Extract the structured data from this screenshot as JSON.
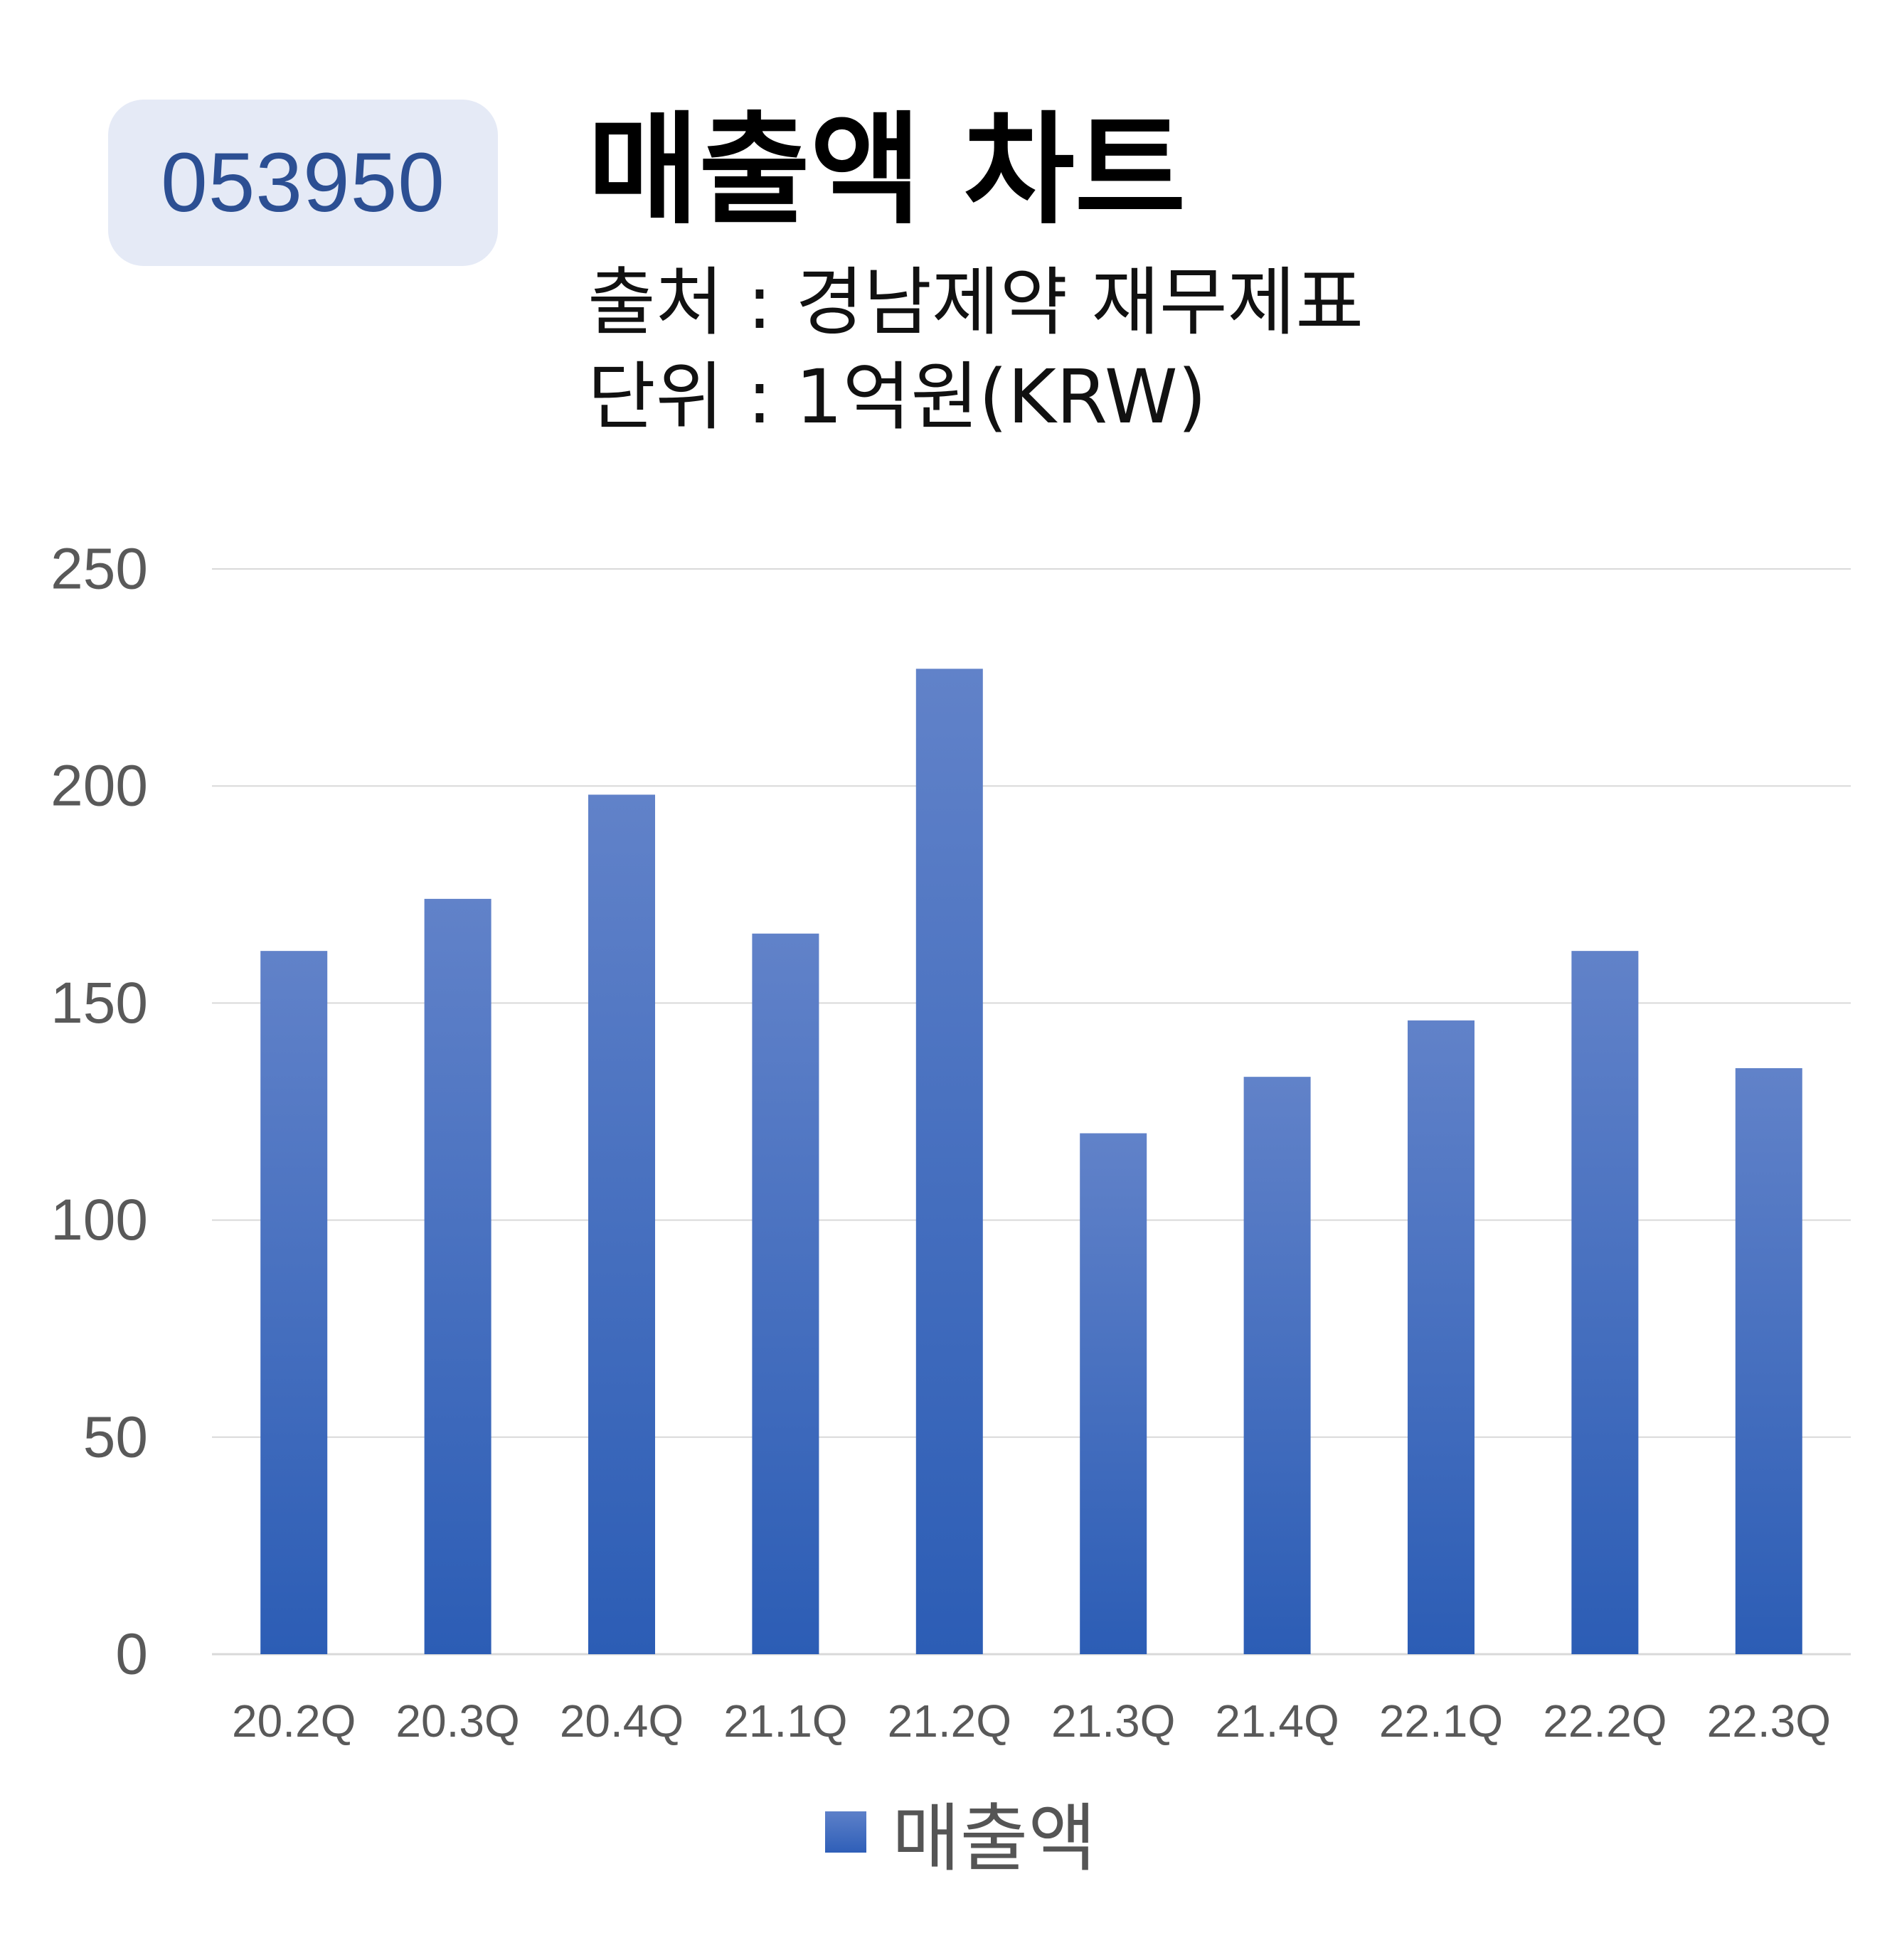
{
  "badge": {
    "code": "053950"
  },
  "header": {
    "title": "매출액 차트",
    "source": "출처 : 경남제약 재무제표",
    "unit": "단위 : 1억원(KRW)"
  },
  "colors": {
    "bar_top": "#6182c9",
    "bar_bottom": "#2c5db5",
    "gridline": "#d9d9d9",
    "axis_text": "#595959",
    "badge_bg": "#e5eaf6",
    "badge_text": "#2c4f93"
  },
  "chart_data": {
    "type": "bar",
    "categories": [
      "20.2Q",
      "20.3Q",
      "20.4Q",
      "21.1Q",
      "21.2Q",
      "21.3Q",
      "21.4Q",
      "22.1Q",
      "22.2Q",
      "22.3Q"
    ],
    "series": [
      {
        "name": "매출액",
        "values": [
          162,
          174,
          198,
          166,
          227,
          120,
          133,
          146,
          162,
          135
        ]
      }
    ],
    "yticks": [
      0,
      50,
      100,
      150,
      200,
      250
    ],
    "ylim": [
      0,
      250
    ],
    "grid": true,
    "legend": "bottom-center"
  }
}
